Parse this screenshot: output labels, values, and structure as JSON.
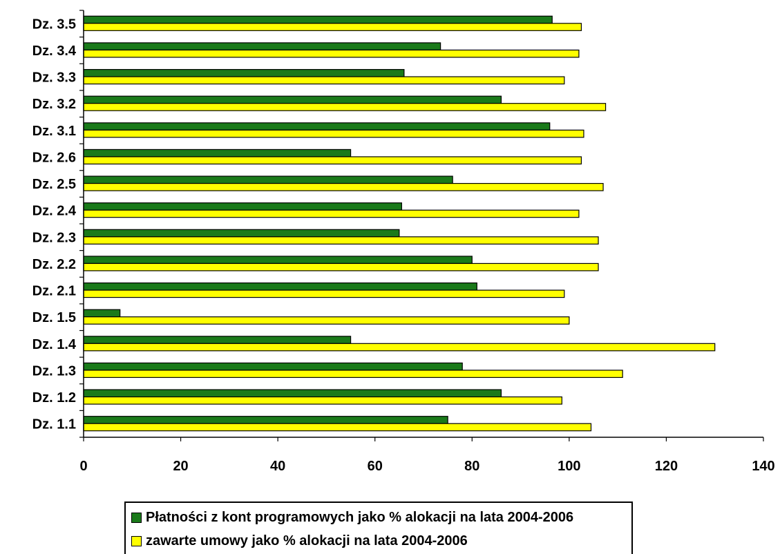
{
  "chart_data": {
    "type": "bar",
    "orientation": "horizontal",
    "categories": [
      "Dz. 1.1",
      "Dz. 1.2",
      "Dz. 1.3",
      "Dz. 1.4",
      "Dz. 1.5",
      "Dz. 2.1",
      "Dz. 2.2",
      "Dz. 2.3",
      "Dz. 2.4",
      "Dz. 2.5",
      "Dz. 2.6",
      "Dz. 3.1",
      "Dz. 3.2",
      "Dz. 3.3",
      "Dz. 3.4",
      "Dz. 3.5"
    ],
    "series": [
      {
        "name": "Płatności z kont programowych jako % alokacji na lata 2004-2006",
        "color": "#1a7a1a",
        "values": [
          75,
          86,
          78,
          55,
          7.5,
          81,
          80,
          65,
          65.5,
          76,
          55,
          96,
          86,
          66,
          73.5,
          96.5
        ]
      },
      {
        "name": "zawarte umowy jako % alokacji na lata 2004-2006",
        "color": "#ffff00",
        "values": [
          104.5,
          98.5,
          111,
          130,
          100,
          99,
          106,
          106,
          102,
          107,
          102.5,
          103,
          107.5,
          99,
          102,
          102.5
        ]
      }
    ],
    "x_ticks": [
      "0",
      "20",
      "40",
      "60",
      "80",
      "100",
      "120",
      "140"
    ],
    "xlim": [
      0,
      140
    ],
    "grid": false,
    "legend_position": "bottom"
  }
}
